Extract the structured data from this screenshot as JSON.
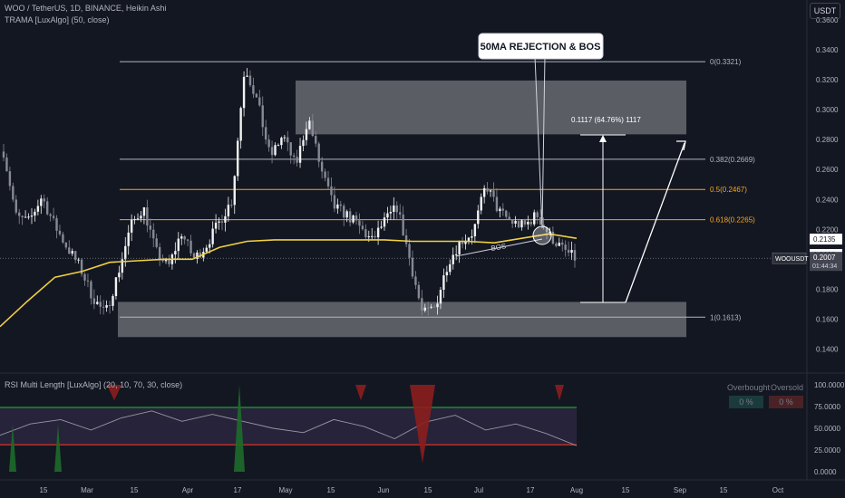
{
  "header": {
    "title": "WOO / TetherUS, 1D, BINANCE, Heikin Ashi",
    "indicator": "TRAMA [LuxAlgo] (50, close)"
  },
  "currency_button": "USDT",
  "rsi_panel": {
    "title": "RSI Multi Length [LuxAlgo] (20, 10, 70, 30, close)",
    "overbought_label": "Overbought",
    "oversold_label": "Oversold",
    "overbought_value": "0 %",
    "oversold_value": "0 %",
    "axis_labels": [
      "100.0000",
      "75.0000",
      "50.0000",
      "25.0000",
      "0.0000"
    ]
  },
  "annotations": {
    "callout": "50MA REJECTION & BOS",
    "bos": "BOS",
    "measure": "0.1117 (64.76%) 1117"
  },
  "fib_levels": [
    {
      "label": "0(0.3321)",
      "value": 0.3321,
      "color": "#b2b5be"
    },
    {
      "label": "0.382(0.2669)",
      "value": 0.2669,
      "color": "#b2b5be"
    },
    {
      "label": "0.5(0.2467)",
      "value": 0.2467,
      "color": "#f5a623"
    },
    {
      "label": "0.618(0.2265)",
      "value": 0.2265,
      "color": "#f5a623"
    },
    {
      "label": "1(0.1613)",
      "value": 0.1613,
      "color": "#b2b5be"
    }
  ],
  "price_axis": [
    "0.3600",
    "0.3400",
    "0.3200",
    "0.3000",
    "0.2800",
    "0.2600",
    "0.2400",
    "0.2200",
    "0.1800",
    "0.1600",
    "0.1400"
  ],
  "price_tags": {
    "level_a": "0.2135",
    "level_b": "0.2032",
    "symbol": "WOOUSDT",
    "last": "0.2007",
    "countdown": "01:44:34"
  },
  "time_axis": [
    "15",
    "Mar",
    "15",
    "Apr",
    "17",
    "May",
    "15",
    "Jun",
    "15",
    "Jul",
    "17",
    "Aug",
    "15",
    "Sep",
    "15",
    "Oct"
  ],
  "chart_data": {
    "type": "candlestick",
    "x_dates": [
      "Feb 15",
      "Mar 1",
      "Mar 15",
      "Apr 1",
      "Apr 17",
      "May 1",
      "May 15",
      "Jun 1",
      "Jun 15",
      "Jul 1",
      "Jul 17",
      "Aug 1",
      "Aug 15",
      "Sep 1",
      "Sep 15",
      "Oct 1"
    ],
    "price_range": [
      0.13,
      0.36
    ],
    "zones": [
      {
        "from": 0.2835,
        "to": 0.3195
      },
      {
        "from": 0.148,
        "to": 0.1715
      }
    ],
    "price_anchors": [
      0.272,
      0.228,
      0.225,
      0.242,
      0.223,
      0.208,
      0.195,
      0.175,
      0.163,
      0.19,
      0.222,
      0.235,
      0.205,
      0.195,
      0.218,
      0.2,
      0.21,
      0.225,
      0.24,
      0.33,
      0.305,
      0.268,
      0.283,
      0.262,
      0.295,
      0.26,
      0.235,
      0.23,
      0.222,
      0.212,
      0.225,
      0.235,
      0.2,
      0.163,
      0.168,
      0.198,
      0.212,
      0.218,
      0.25,
      0.232,
      0.225,
      0.222,
      0.23,
      0.216,
      0.207,
      0.2007
    ],
    "trama": [
      0.155,
      0.172,
      0.188,
      0.192,
      0.198,
      0.199,
      0.2,
      0.2,
      0.208,
      0.212,
      0.213,
      0.213,
      0.213,
      0.213,
      0.213,
      0.212,
      0.212,
      0.212,
      0.211,
      0.214,
      0.217,
      0.214
    ],
    "rsi": {
      "upper_band": 74,
      "lower_band": 31,
      "avg": [
        42,
        55,
        60,
        48,
        62,
        70,
        58,
        66,
        58,
        50,
        45,
        60,
        52,
        38,
        57,
        65,
        48,
        55,
        44,
        30
      ]
    }
  }
}
